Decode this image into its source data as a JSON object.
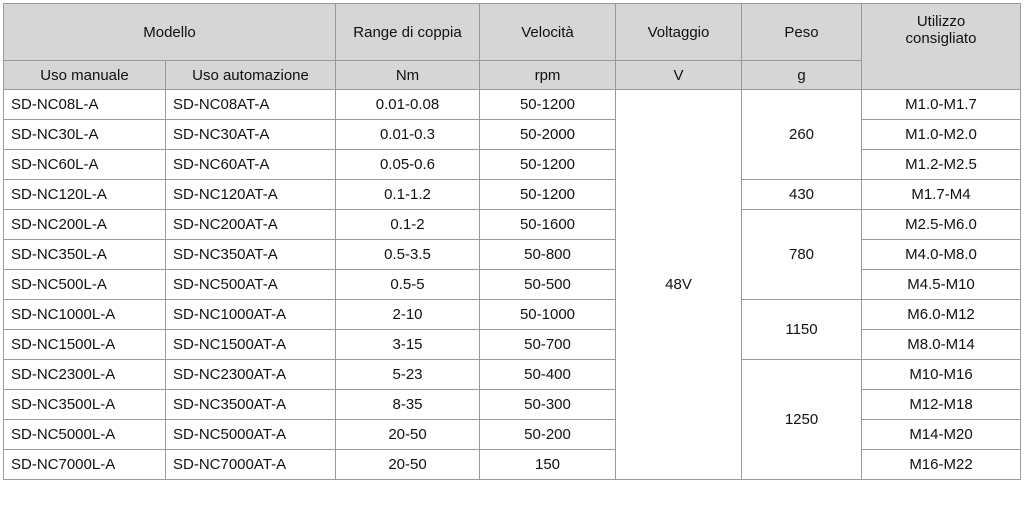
{
  "header": {
    "modello": "Modello",
    "range": "Range di coppia",
    "velocita": "Velocità",
    "voltaggio": "Voltaggio",
    "peso": "Peso",
    "utilizzo": "Utilizzo consigliato",
    "uso_manuale": "Uso manuale",
    "uso_automazione": "Uso automazione",
    "unit_range": "Nm",
    "unit_velocita": "rpm",
    "unit_voltaggio": "V",
    "unit_peso": "g"
  },
  "voltage": "48V",
  "weights": [
    "260",
    "430",
    "780",
    "1150",
    "1250"
  ],
  "rows": [
    {
      "manual": "SD-NC08L-A",
      "auto": "SD-NC08AT-A",
      "torque": "0.01-0.08",
      "speed": "50-1200",
      "use": "M1.0-M1.7"
    },
    {
      "manual": "SD-NC30L-A",
      "auto": "SD-NC30AT-A",
      "torque": "0.01-0.3",
      "speed": "50-2000",
      "use": "M1.0-M2.0"
    },
    {
      "manual": "SD-NC60L-A",
      "auto": "SD-NC60AT-A",
      "torque": "0.05-0.6",
      "speed": "50-1200",
      "use": "M1.2-M2.5"
    },
    {
      "manual": "SD-NC120L-A",
      "auto": "SD-NC120AT-A",
      "torque": "0.1-1.2",
      "speed": "50-1200",
      "use": "M1.7-M4"
    },
    {
      "manual": "SD-NC200L-A",
      "auto": "SD-NC200AT-A",
      "torque": "0.1-2",
      "speed": "50-1600",
      "use": "M2.5-M6.0"
    },
    {
      "manual": "SD-NC350L-A",
      "auto": "SD-NC350AT-A",
      "torque": "0.5-3.5",
      "speed": "50-800",
      "use": "M4.0-M8.0"
    },
    {
      "manual": "SD-NC500L-A",
      "auto": "SD-NC500AT-A",
      "torque": "0.5-5",
      "speed": "50-500",
      "use": "M4.5-M10"
    },
    {
      "manual": "SD-NC1000L-A",
      "auto": "SD-NC1000AT-A",
      "torque": "2-10",
      "speed": "50-1000",
      "use": "M6.0-M12"
    },
    {
      "manual": "SD-NC1500L-A",
      "auto": "SD-NC1500AT-A",
      "torque": "3-15",
      "speed": "50-700",
      "use": "M8.0-M14"
    },
    {
      "manual": "SD-NC2300L-A",
      "auto": "SD-NC2300AT-A",
      "torque": "5-23",
      "speed": "50-400",
      "use": "M10-M16"
    },
    {
      "manual": "SD-NC3500L-A",
      "auto": "SD-NC3500AT-A",
      "torque": "8-35",
      "speed": "50-300",
      "use": "M12-M18"
    },
    {
      "manual": "SD-NC5000L-A",
      "auto": "SD-NC5000AT-A",
      "torque": "20-50",
      "speed": "50-200",
      "use": "M14-M20"
    },
    {
      "manual": "SD-NC7000L-A",
      "auto": "SD-NC7000AT-A",
      "torque": "20-50",
      "speed": "150",
      "use": "M16-M22"
    }
  ]
}
